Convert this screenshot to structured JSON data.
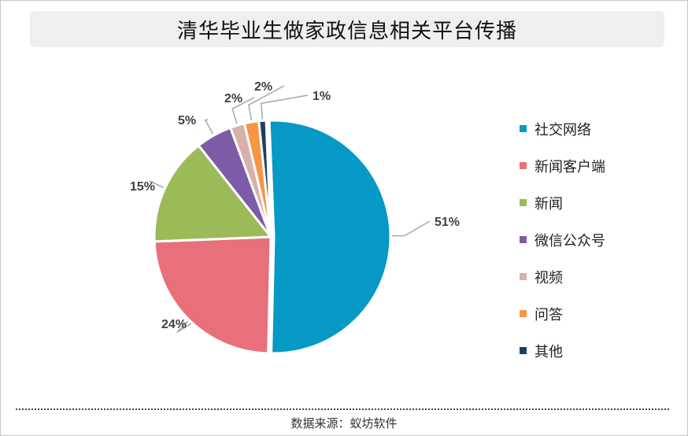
{
  "title": "清华毕业生做家政信息相关平台传播",
  "source_text": "数据来源：蚁坊软件",
  "chart_data": {
    "type": "pie",
    "title": "清华毕业生做家政信息相关平台传播",
    "legend_position": "right",
    "slices": [
      {
        "label": "社交网络",
        "value": 51,
        "value_label": "51%",
        "color": "#0699c6"
      },
      {
        "label": "新闻客户端",
        "value": 24,
        "value_label": "24%",
        "color": "#e7707a"
      },
      {
        "label": "新闻",
        "value": 15,
        "value_label": "15%",
        "color": "#9bbb59"
      },
      {
        "label": "微信公众号",
        "value": 5,
        "value_label": "5%",
        "color": "#7e5ba6"
      },
      {
        "label": "视频",
        "value": 2,
        "value_label": "2%",
        "color": "#d8b1ab"
      },
      {
        "label": "问答",
        "value": 2,
        "value_label": "2%",
        "color": "#f79646"
      },
      {
        "label": "其他",
        "value": 1,
        "value_label": "1%",
        "color": "#1f3f63"
      }
    ]
  }
}
